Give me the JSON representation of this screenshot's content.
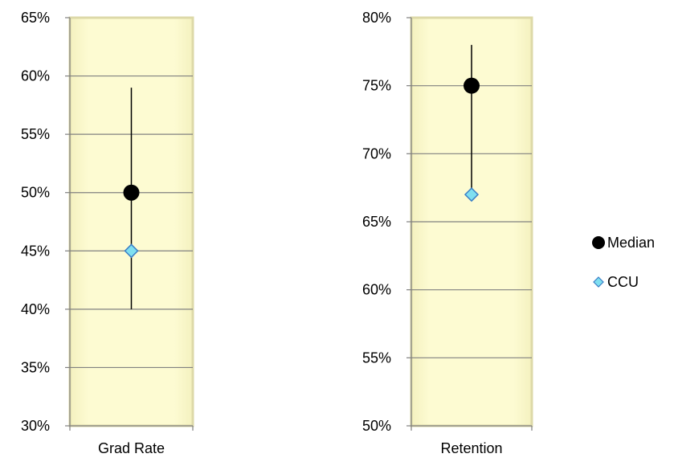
{
  "chart_data": [
    {
      "type": "scatter",
      "categories": [
        "Grad Rate"
      ],
      "ylim": [
        0.3,
        0.65
      ],
      "yticks": [
        "30%",
        "35%",
        "40%",
        "45%",
        "50%",
        "55%",
        "60%",
        "65%"
      ],
      "range": {
        "low": 0.4,
        "high": 0.59
      },
      "series": [
        {
          "name": "Median",
          "values": [
            0.5
          ],
          "marker": "circle",
          "color": "#000000"
        },
        {
          "name": "CCU",
          "values": [
            0.45
          ],
          "marker": "diamond",
          "color": "#7fdff0"
        }
      ],
      "grid": true
    },
    {
      "type": "scatter",
      "categories": [
        "Retention"
      ],
      "ylim": [
        0.5,
        0.8
      ],
      "yticks": [
        "50%",
        "55%",
        "60%",
        "65%",
        "70%",
        "75%",
        "80%"
      ],
      "range": {
        "low": 0.67,
        "high": 0.78
      },
      "series": [
        {
          "name": "Median",
          "values": [
            0.75
          ],
          "marker": "circle",
          "color": "#000000"
        },
        {
          "name": "CCU",
          "values": [
            0.67
          ],
          "marker": "diamond",
          "color": "#7fdff0"
        }
      ],
      "grid": true
    }
  ],
  "legend": {
    "placement": "right",
    "items": [
      {
        "label": "Median",
        "marker": "circle",
        "color": "#000000"
      },
      {
        "label": "CCU",
        "marker": "diamond",
        "color": "#7fdff0"
      }
    ]
  },
  "colors": {
    "plot_fill": "#fdfbd2",
    "plot_border": "#ddd9a8",
    "grid": "#808080",
    "range_line": "#000000",
    "diamond_stroke": "#3a7ec6"
  }
}
